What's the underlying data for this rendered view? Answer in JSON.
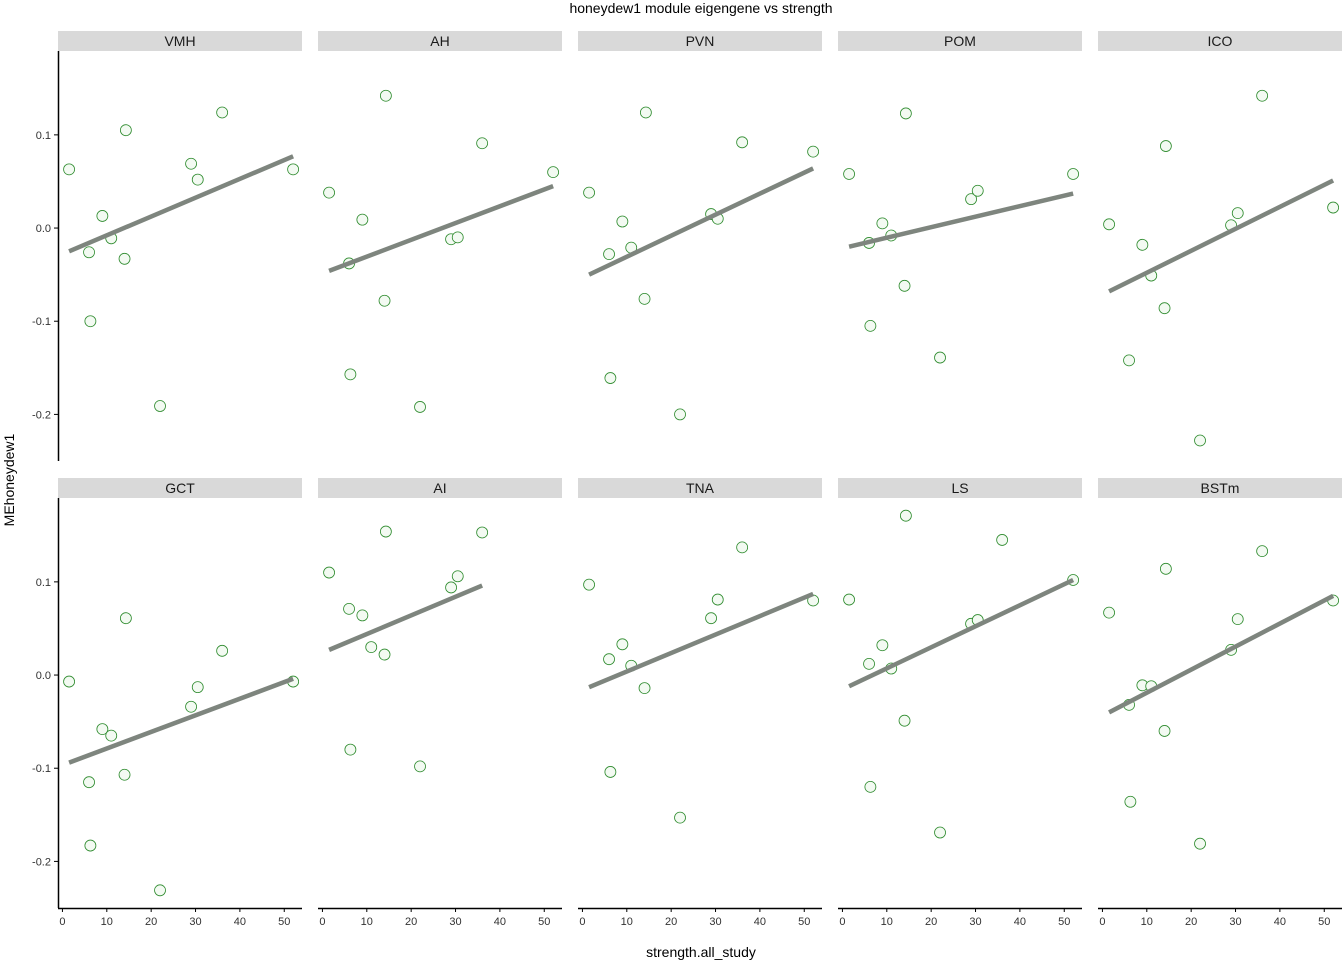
{
  "chart_data": {
    "type": "scatter",
    "title": "honeydew1 module eigengene vs strength",
    "xlabel": "strength.all_study",
    "ylabel": "MEhoneydew1",
    "xlim": [
      -1,
      54
    ],
    "ylim": [
      -0.25,
      0.19
    ],
    "x_ticks": [
      0,
      10,
      20,
      30,
      40,
      50
    ],
    "y_ticks": [
      -0.2,
      -0.1,
      0.0,
      0.1
    ],
    "y_tick_labels": [
      "-0.2",
      "-0.1",
      "0.0",
      "0.1"
    ],
    "grid": false,
    "trend_line": true,
    "colors": {
      "point_stroke": "#2e8b2e",
      "point_fill": "#f3faf2",
      "trend_line": "#7e857e",
      "strip_bg": "#d9d9d9",
      "axis": "#000000"
    },
    "panels": [
      {
        "name": "VMH",
        "points": [
          [
            1.5,
            0.063
          ],
          [
            6,
            -0.026
          ],
          [
            6.3,
            -0.1
          ],
          [
            9,
            0.013
          ],
          [
            11,
            -0.011
          ],
          [
            14,
            -0.033
          ],
          [
            14.3,
            0.105
          ],
          [
            22,
            -0.191
          ],
          [
            29,
            0.069
          ],
          [
            30.5,
            0.052
          ],
          [
            36,
            0.124
          ],
          [
            52,
            0.063
          ]
        ],
        "line": [
          [
            1.5,
            -0.025
          ],
          [
            52,
            0.077
          ]
        ]
      },
      {
        "name": "AH",
        "points": [
          [
            1.5,
            0.038
          ],
          [
            6,
            -0.038
          ],
          [
            6.3,
            -0.157
          ],
          [
            9,
            0.009
          ],
          [
            14,
            -0.078
          ],
          [
            14.3,
            0.142
          ],
          [
            22,
            -0.192
          ],
          [
            29,
            -0.012
          ],
          [
            30.5,
            -0.01
          ],
          [
            36,
            0.091
          ],
          [
            52,
            0.06
          ]
        ],
        "line": [
          [
            1.5,
            -0.046
          ],
          [
            52,
            0.045
          ]
        ]
      },
      {
        "name": "PVN",
        "points": [
          [
            1.5,
            0.038
          ],
          [
            6,
            -0.028
          ],
          [
            6.3,
            -0.161
          ],
          [
            9,
            0.007
          ],
          [
            11,
            -0.021
          ],
          [
            14,
            -0.076
          ],
          [
            14.3,
            0.124
          ],
          [
            22,
            -0.2
          ],
          [
            29,
            0.015
          ],
          [
            30.5,
            0.01
          ],
          [
            36,
            0.092
          ],
          [
            52,
            0.082
          ]
        ],
        "line": [
          [
            1.5,
            -0.05
          ],
          [
            52,
            0.064
          ]
        ]
      },
      {
        "name": "POM",
        "points": [
          [
            1.5,
            0.058
          ],
          [
            6,
            -0.016
          ],
          [
            6.3,
            -0.105
          ],
          [
            9,
            0.005
          ],
          [
            11,
            -0.008
          ],
          [
            14,
            -0.062
          ],
          [
            14.3,
            0.123
          ],
          [
            22,
            -0.139
          ],
          [
            29,
            0.031
          ],
          [
            30.5,
            0.04
          ],
          [
            52,
            0.058
          ]
        ],
        "line": [
          [
            1.5,
            -0.02
          ],
          [
            52,
            0.037
          ]
        ]
      },
      {
        "name": "ICO",
        "points": [
          [
            1.5,
            0.004
          ],
          [
            6,
            -0.142
          ],
          [
            9,
            -0.018
          ],
          [
            11,
            -0.051
          ],
          [
            14,
            -0.086
          ],
          [
            14.3,
            0.088
          ],
          [
            22,
            -0.228
          ],
          [
            29,
            0.003
          ],
          [
            30.5,
            0.016
          ],
          [
            36,
            0.142
          ],
          [
            52,
            0.022
          ]
        ],
        "line": [
          [
            1.5,
            -0.068
          ],
          [
            52,
            0.051
          ]
        ]
      },
      {
        "name": "GCT",
        "points": [
          [
            1.5,
            -0.007
          ],
          [
            6,
            -0.115
          ],
          [
            6.3,
            -0.183
          ],
          [
            9,
            -0.058
          ],
          [
            11,
            -0.065
          ],
          [
            14,
            -0.107
          ],
          [
            14.3,
            0.061
          ],
          [
            22,
            -0.231
          ],
          [
            29,
            -0.034
          ],
          [
            30.5,
            -0.013
          ],
          [
            36,
            0.026
          ],
          [
            52,
            -0.007
          ]
        ],
        "line": [
          [
            1.5,
            -0.094
          ],
          [
            52,
            -0.004
          ]
        ]
      },
      {
        "name": "AI",
        "points": [
          [
            1.5,
            0.11
          ],
          [
            6,
            0.071
          ],
          [
            6.3,
            -0.08
          ],
          [
            9,
            0.064
          ],
          [
            11,
            0.03
          ],
          [
            14,
            0.022
          ],
          [
            14.3,
            0.154
          ],
          [
            22,
            -0.098
          ],
          [
            29,
            0.094
          ],
          [
            30.5,
            0.106
          ],
          [
            36,
            0.153
          ]
        ],
        "line": [
          [
            1.5,
            0.027
          ],
          [
            36,
            0.096
          ]
        ]
      },
      {
        "name": "TNA",
        "points": [
          [
            1.5,
            0.097
          ],
          [
            6,
            0.017
          ],
          [
            6.3,
            -0.104
          ],
          [
            9,
            0.033
          ],
          [
            11,
            0.01
          ],
          [
            14,
            -0.014
          ],
          [
            22,
            -0.153
          ],
          [
            29,
            0.061
          ],
          [
            30.5,
            0.081
          ],
          [
            36,
            0.137
          ],
          [
            52,
            0.08
          ]
        ],
        "line": [
          [
            1.5,
            -0.013
          ],
          [
            52,
            0.087
          ]
        ]
      },
      {
        "name": "LS",
        "points": [
          [
            1.5,
            0.081
          ],
          [
            6,
            0.012
          ],
          [
            6.3,
            -0.12
          ],
          [
            9,
            0.032
          ],
          [
            11,
            0.007
          ],
          [
            14,
            -0.049
          ],
          [
            14.3,
            0.171
          ],
          [
            22,
            -0.169
          ],
          [
            29,
            0.055
          ],
          [
            30.5,
            0.059
          ],
          [
            36,
            0.145
          ],
          [
            52,
            0.102
          ]
        ],
        "line": [
          [
            1.5,
            -0.012
          ],
          [
            52,
            0.102
          ]
        ]
      },
      {
        "name": "BSTm",
        "points": [
          [
            1.5,
            0.067
          ],
          [
            6,
            -0.032
          ],
          [
            6.3,
            -0.136
          ],
          [
            9,
            -0.011
          ],
          [
            11,
            -0.012
          ],
          [
            14,
            -0.06
          ],
          [
            14.3,
            0.114
          ],
          [
            22,
            -0.181
          ],
          [
            29,
            0.027
          ],
          [
            30.5,
            0.06
          ],
          [
            36,
            0.133
          ],
          [
            52,
            0.08
          ]
        ],
        "line": [
          [
            1.5,
            -0.04
          ],
          [
            52,
            0.085
          ]
        ]
      }
    ]
  }
}
